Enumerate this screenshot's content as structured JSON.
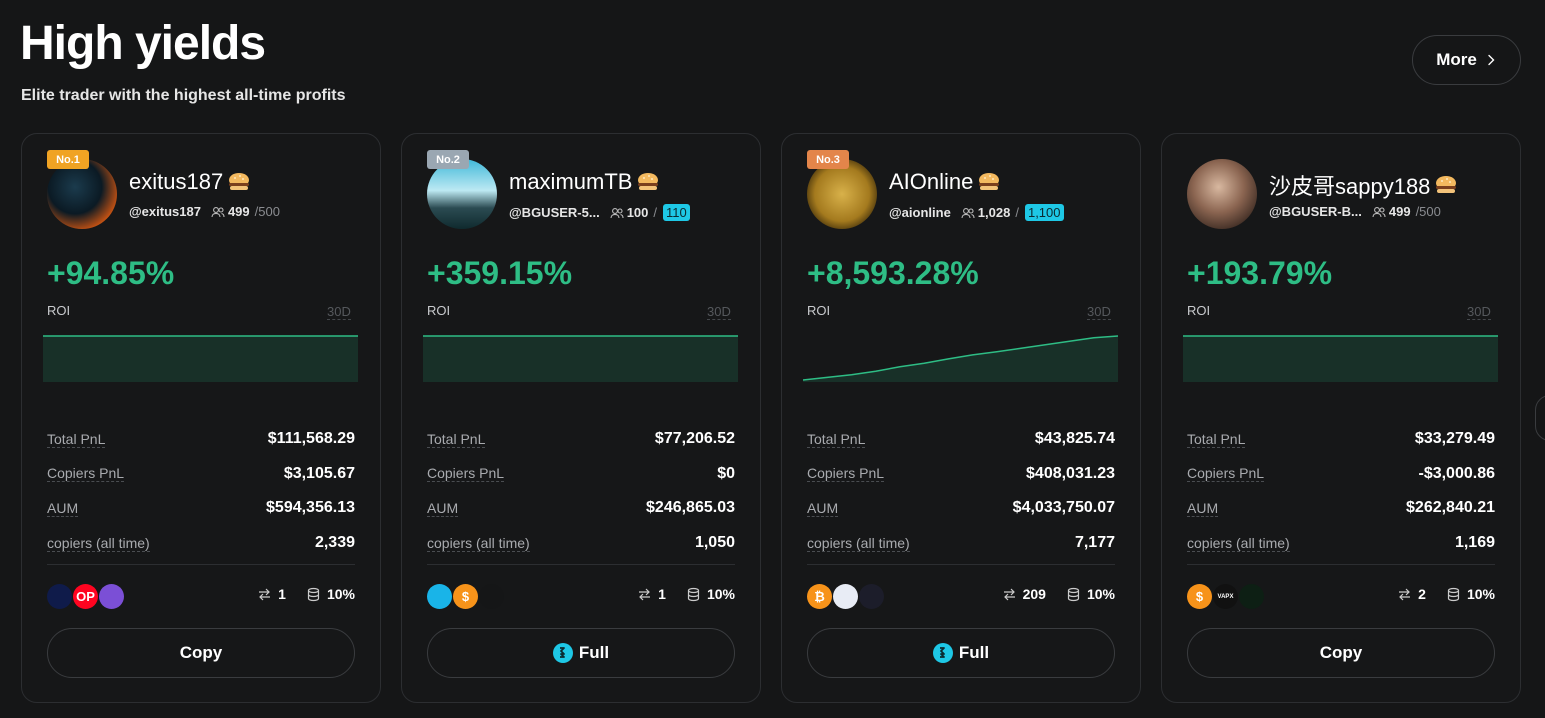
{
  "header": {
    "title": "High yields",
    "subtitle": "Elite trader with the highest all-time profits",
    "more_label": "More"
  },
  "colors": {
    "background": "#151617",
    "positive": "#2ebd85",
    "highlight": "#1ec8e6",
    "rank1": "#f0a323",
    "rank2": "#9aa7b2",
    "rank3": "#e3854a"
  },
  "cards": [
    {
      "rank": "No.1",
      "name": "exitus187",
      "handle": "@exitus187",
      "copiers_current": "499",
      "copiers_max": "/500",
      "max_highlight": false,
      "roi": "+94.85%",
      "roi_label": "ROI",
      "period": "30D",
      "roi_series": [
        0,
        0,
        0,
        0,
        0,
        0,
        0,
        0,
        0,
        0
      ],
      "stats": [
        {
          "label": "Total PnL",
          "value": "$111,568.29"
        },
        {
          "label": "Copiers PnL",
          "value": "$3,105.67"
        },
        {
          "label": "AUM",
          "value": "$594,356.13"
        },
        {
          "label": "copiers (all time)",
          "value": "2,339"
        }
      ],
      "coins": [
        "near-icon",
        "op-icon",
        "polygon-icon"
      ],
      "coin_labels": [
        "",
        "OP",
        ""
      ],
      "trades": "1",
      "profit_share": "10%",
      "action": "Copy",
      "action_icon": false
    },
    {
      "rank": "No.2",
      "name": "maximumTB",
      "handle": "@BGUSER-5...",
      "copiers_current": "100",
      "copiers_max": "110",
      "max_highlight": true,
      "roi": "+359.15%",
      "roi_label": "ROI",
      "period": "30D",
      "roi_series": [
        0,
        0,
        0,
        0,
        0,
        0,
        0,
        0,
        0,
        0
      ],
      "stats": [
        {
          "label": "Total PnL",
          "value": "$77,206.52"
        },
        {
          "label": "Copiers PnL",
          "value": "$0"
        },
        {
          "label": "AUM",
          "value": "$246,865.03"
        },
        {
          "label": "copiers (all time)",
          "value": "1,050"
        }
      ],
      "coins": [
        "fantom-icon",
        "usdc-icon",
        "bar-token-icon"
      ],
      "coin_labels": [
        "",
        "$",
        ""
      ],
      "trades": "1",
      "profit_share": "10%",
      "action": "Full",
      "action_icon": true
    },
    {
      "rank": "No.3",
      "name": "AIOnline",
      "handle": "@aionline",
      "copiers_current": "1,028",
      "copiers_max": "1,100",
      "max_highlight": true,
      "roi": "+8,593.28%",
      "roi_label": "ROI",
      "period": "30D",
      "roi_series": [
        0,
        6,
        12,
        20,
        30,
        38,
        48,
        57,
        64,
        72,
        80,
        88,
        96,
        100
      ],
      "stats": [
        {
          "label": "Total PnL",
          "value": "$43,825.74"
        },
        {
          "label": "Copiers PnL",
          "value": "$408,031.23"
        },
        {
          "label": "AUM",
          "value": "$4,033,750.07"
        },
        {
          "label": "copiers (all time)",
          "value": "7,177"
        }
      ],
      "coins": [
        "bitcoin-icon",
        "ethereum-icon",
        "polkadot-icon"
      ],
      "coin_labels": [
        "₿",
        "",
        ""
      ],
      "trades": "209",
      "profit_share": "10%",
      "action": "Full",
      "action_icon": true
    },
    {
      "rank": "",
      "name": "沙皮哥sappy188",
      "handle": "@BGUSER-B...",
      "copiers_current": "499",
      "copiers_max": "/500",
      "max_highlight": false,
      "roi": "+193.79%",
      "roi_label": "ROI",
      "period": "30D",
      "roi_series": [
        0,
        0,
        0,
        0,
        0,
        0,
        0,
        0,
        0,
        0
      ],
      "stats": [
        {
          "label": "Total PnL",
          "value": "$33,279.49"
        },
        {
          "label": "Copiers PnL",
          "value": "-$3,000.86"
        },
        {
          "label": "AUM",
          "value": "$262,840.21"
        },
        {
          "label": "copiers (all time)",
          "value": "1,169"
        }
      ],
      "coins": [
        "usd-coin-icon",
        "vapx-icon",
        "x-token-icon"
      ],
      "coin_labels": [
        "$",
        "VAPX",
        ""
      ],
      "trades": "2",
      "profit_share": "10%",
      "action": "Copy",
      "action_icon": false
    }
  ]
}
